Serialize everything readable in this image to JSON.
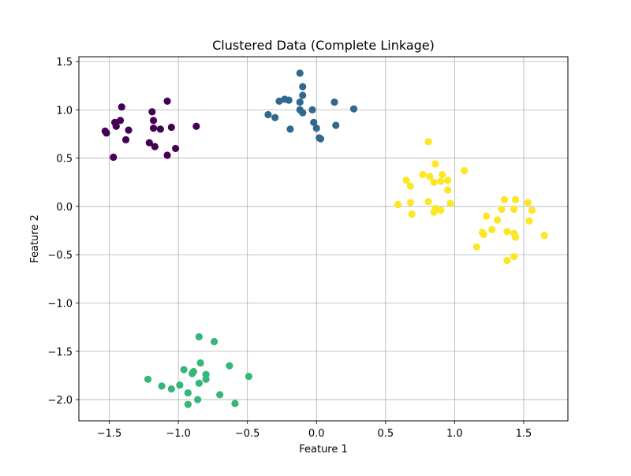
{
  "chart_data": {
    "type": "scatter",
    "title": "Clustered Data (Complete Linkage)",
    "xlabel": "Feature 1",
    "ylabel": "Feature 2",
    "xlim": [
      -1.72,
      1.82
    ],
    "ylim": [
      -2.22,
      1.55
    ],
    "xticks": [
      -1.5,
      -1.0,
      -0.5,
      0.0,
      0.5,
      1.0,
      1.5
    ],
    "xtick_labels": [
      "−1.5",
      "−1.0",
      "−0.5",
      "0.0",
      "0.5",
      "1.0",
      "1.5"
    ],
    "yticks": [
      -2.0,
      -1.5,
      -1.0,
      -0.5,
      0.0,
      0.5,
      1.0,
      1.5
    ],
    "ytick_labels": [
      "−2.0",
      "−1.5",
      "−1.0",
      "−0.5",
      "0.0",
      "0.5",
      "1.0",
      "1.5"
    ],
    "grid": true,
    "colormap": "viridis",
    "series": [
      {
        "color": "#440154",
        "points": [
          [
            -1.53,
            0.78
          ],
          [
            -1.52,
            0.76
          ],
          [
            -1.46,
            0.87
          ],
          [
            -1.45,
            0.83
          ],
          [
            -1.42,
            0.89
          ],
          [
            -1.41,
            1.03
          ],
          [
            -1.38,
            0.69
          ],
          [
            -1.36,
            0.79
          ],
          [
            -1.47,
            0.51
          ],
          [
            -1.19,
            0.98
          ],
          [
            -1.18,
            0.89
          ],
          [
            -1.18,
            0.81
          ],
          [
            -1.13,
            0.8
          ],
          [
            -1.08,
            1.09
          ],
          [
            -1.05,
            0.82
          ],
          [
            -1.21,
            0.66
          ],
          [
            -1.17,
            0.62
          ],
          [
            -1.08,
            0.53
          ],
          [
            -1.02,
            0.6
          ],
          [
            -0.87,
            0.83
          ]
        ]
      },
      {
        "color": "#31688e",
        "points": [
          [
            -0.12,
            1.38
          ],
          [
            -0.1,
            1.24
          ],
          [
            -0.1,
            1.15
          ],
          [
            -0.12,
            1.08
          ],
          [
            -0.23,
            1.11
          ],
          [
            -0.2,
            1.1
          ],
          [
            -0.27,
            1.09
          ],
          [
            -0.12,
            1.0
          ],
          [
            -0.1,
            0.97
          ],
          [
            -0.35,
            0.95
          ],
          [
            -0.3,
            0.92
          ],
          [
            -0.19,
            0.8
          ],
          [
            -0.03,
            1.0
          ],
          [
            -0.02,
            0.87
          ],
          [
            0.0,
            0.81
          ],
          [
            0.02,
            0.71
          ],
          [
            0.03,
            0.7
          ],
          [
            0.13,
            1.08
          ],
          [
            0.14,
            0.84
          ],
          [
            0.27,
            1.01
          ]
        ]
      },
      {
        "color": "#35b779",
        "points": [
          [
            -0.85,
            -1.35
          ],
          [
            -0.74,
            -1.4
          ],
          [
            -0.63,
            -1.65
          ],
          [
            -0.84,
            -1.62
          ],
          [
            -0.96,
            -1.69
          ],
          [
            -0.89,
            -1.71
          ],
          [
            -0.9,
            -1.73
          ],
          [
            -0.8,
            -1.74
          ],
          [
            -1.22,
            -1.79
          ],
          [
            -0.8,
            -1.79
          ],
          [
            -0.85,
            -1.83
          ],
          [
            -0.99,
            -1.85
          ],
          [
            -1.12,
            -1.86
          ],
          [
            -1.05,
            -1.89
          ],
          [
            -0.93,
            -1.93
          ],
          [
            -0.7,
            -1.95
          ],
          [
            -0.86,
            -2.0
          ],
          [
            -0.93,
            -2.05
          ],
          [
            -0.59,
            -2.04
          ],
          [
            -0.49,
            -1.76
          ]
        ]
      },
      {
        "color": "#fde725",
        "points": [
          [
            0.81,
            0.67
          ],
          [
            0.86,
            0.44
          ],
          [
            1.07,
            0.37
          ],
          [
            0.77,
            0.33
          ],
          [
            0.82,
            0.31
          ],
          [
            0.91,
            0.33
          ],
          [
            0.65,
            0.27
          ],
          [
            0.85,
            0.25
          ],
          [
            0.9,
            0.26
          ],
          [
            0.95,
            0.27
          ],
          [
            0.68,
            0.21
          ],
          [
            0.95,
            0.17
          ],
          [
            0.59,
            0.02
          ],
          [
            0.68,
            0.04
          ],
          [
            0.81,
            0.05
          ],
          [
            0.97,
            0.03
          ],
          [
            0.86,
            -0.02
          ],
          [
            0.9,
            -0.04
          ],
          [
            0.85,
            -0.06
          ],
          [
            0.69,
            -0.08
          ],
          [
            1.36,
            0.07
          ],
          [
            1.44,
            0.07
          ],
          [
            1.53,
            0.04
          ],
          [
            1.34,
            -0.03
          ],
          [
            1.43,
            -0.03
          ],
          [
            1.56,
            -0.04
          ],
          [
            1.23,
            -0.1
          ],
          [
            1.31,
            -0.14
          ],
          [
            1.54,
            -0.15
          ],
          [
            1.27,
            -0.24
          ],
          [
            1.2,
            -0.27
          ],
          [
            1.38,
            -0.26
          ],
          [
            1.43,
            -0.28
          ],
          [
            1.44,
            -0.32
          ],
          [
            1.21,
            -0.29
          ],
          [
            1.65,
            -0.3
          ],
          [
            1.16,
            -0.42
          ],
          [
            1.43,
            -0.52
          ],
          [
            1.38,
            -0.56
          ]
        ]
      }
    ]
  }
}
